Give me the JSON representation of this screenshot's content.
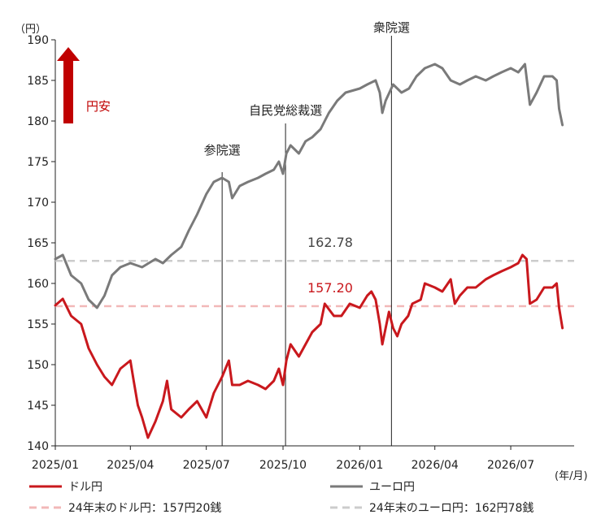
{
  "chart_data": {
    "type": "line",
    "unit_label": "（円）",
    "x_unit_label": "(年/月)",
    "ylim": [
      140,
      190
    ],
    "yticks": [
      140,
      145,
      150,
      155,
      160,
      165,
      170,
      175,
      180,
      185,
      190
    ],
    "xlim": [
      "2025-01-01",
      "2026-09-15"
    ],
    "xticks": [
      {
        "date": "2025-01-01",
        "label": "2025/01"
      },
      {
        "date": "2025-04-01",
        "label": "2025/04"
      },
      {
        "date": "2025-07-01",
        "label": "2025/07"
      },
      {
        "date": "2025-10-01",
        "label": "2025/10"
      },
      {
        "date": "2026-01-01",
        "label": "2026/01"
      },
      {
        "date": "2026-04-01",
        "label": "2026/04"
      },
      {
        "date": "2026-07-01",
        "label": "2026/07"
      }
    ],
    "grid": false,
    "legend_position": "bottom",
    "arrow_label": "円安",
    "series": [
      {
        "name": "ドル円",
        "color": "#c9181d",
        "points": [
          [
            "2025-01-01",
            157.3
          ],
          [
            "2025-01-10",
            158.1
          ],
          [
            "2025-01-20",
            156.0
          ],
          [
            "2025-02-01",
            155.0
          ],
          [
            "2025-02-10",
            152.0
          ],
          [
            "2025-02-20",
            150.0
          ],
          [
            "2025-03-01",
            148.5
          ],
          [
            "2025-03-10",
            147.5
          ],
          [
            "2025-03-20",
            149.5
          ],
          [
            "2025-04-01",
            150.5
          ],
          [
            "2025-04-05",
            148.0
          ],
          [
            "2025-04-10",
            145.0
          ],
          [
            "2025-04-15",
            143.5
          ],
          [
            "2025-04-22",
            141.0
          ],
          [
            "2025-05-01",
            143.0
          ],
          [
            "2025-05-10",
            145.5
          ],
          [
            "2025-05-15",
            148.0
          ],
          [
            "2025-05-20",
            144.5
          ],
          [
            "2025-06-01",
            143.5
          ],
          [
            "2025-06-10",
            144.5
          ],
          [
            "2025-06-20",
            145.5
          ],
          [
            "2025-07-01",
            143.5
          ],
          [
            "2025-07-10",
            146.5
          ],
          [
            "2025-07-20",
            148.5
          ],
          [
            "2025-07-28",
            150.5
          ],
          [
            "2025-08-01",
            147.5
          ],
          [
            "2025-08-10",
            147.5
          ],
          [
            "2025-08-20",
            148.0
          ],
          [
            "2025-09-01",
            147.5
          ],
          [
            "2025-09-10",
            147.0
          ],
          [
            "2025-09-20",
            148.0
          ],
          [
            "2025-09-26",
            149.5
          ],
          [
            "2025-10-01",
            147.5
          ],
          [
            "2025-10-05",
            150.5
          ],
          [
            "2025-10-10",
            152.5
          ],
          [
            "2025-10-20",
            151.0
          ],
          [
            "2025-10-28",
            152.5
          ],
          [
            "2025-11-05",
            154.0
          ],
          [
            "2025-11-15",
            155.0
          ],
          [
            "2025-11-20",
            157.5
          ],
          [
            "2025-12-01",
            156.0
          ],
          [
            "2025-12-10",
            156.0
          ],
          [
            "2025-12-20",
            157.5
          ],
          [
            "2026-01-01",
            157.0
          ],
          [
            "2026-01-10",
            158.5
          ],
          [
            "2026-01-15",
            159.0
          ],
          [
            "2026-01-20",
            158.0
          ],
          [
            "2026-01-25",
            155.0
          ],
          [
            "2026-01-28",
            152.5
          ],
          [
            "2026-02-01",
            154.5
          ],
          [
            "2026-02-05",
            156.5
          ],
          [
            "2026-02-10",
            154.5
          ],
          [
            "2026-02-15",
            153.5
          ],
          [
            "2026-02-20",
            155.0
          ],
          [
            "2026-02-28",
            156.0
          ],
          [
            "2026-03-05",
            157.5
          ],
          [
            "2026-03-15",
            158.0
          ],
          [
            "2026-03-20",
            160.0
          ],
          [
            "2026-04-01",
            159.5
          ],
          [
            "2026-04-10",
            159.0
          ],
          [
            "2026-04-20",
            160.5
          ],
          [
            "2026-04-25",
            157.5
          ],
          [
            "2026-05-01",
            158.5
          ],
          [
            "2026-05-10",
            159.5
          ],
          [
            "2026-05-20",
            159.5
          ],
          [
            "2026-06-01",
            160.5
          ],
          [
            "2026-06-10",
            161.0
          ],
          [
            "2026-06-20",
            161.5
          ],
          [
            "2026-07-01",
            162.0
          ],
          [
            "2026-07-10",
            162.5
          ],
          [
            "2026-07-15",
            163.5
          ],
          [
            "2026-07-20",
            163.0
          ],
          [
            "2026-07-24",
            157.5
          ],
          [
            "2026-08-01",
            158.0
          ],
          [
            "2026-08-10",
            159.5
          ],
          [
            "2026-08-20",
            159.5
          ],
          [
            "2026-08-25",
            160.0
          ],
          [
            "2026-08-28",
            157.0
          ],
          [
            "2026-09-01",
            154.5
          ]
        ]
      },
      {
        "name": "ユーロ円",
        "color": "#7a7a7a",
        "points": [
          [
            "2025-01-01",
            163.0
          ],
          [
            "2025-01-10",
            163.5
          ],
          [
            "2025-01-20",
            161.0
          ],
          [
            "2025-02-01",
            160.0
          ],
          [
            "2025-02-10",
            158.0
          ],
          [
            "2025-02-20",
            157.0
          ],
          [
            "2025-03-01",
            158.5
          ],
          [
            "2025-03-10",
            161.0
          ],
          [
            "2025-03-20",
            162.0
          ],
          [
            "2025-04-01",
            162.5
          ],
          [
            "2025-04-15",
            162.0
          ],
          [
            "2025-05-01",
            163.0
          ],
          [
            "2025-05-10",
            162.5
          ],
          [
            "2025-05-20",
            163.5
          ],
          [
            "2025-06-01",
            164.5
          ],
          [
            "2025-06-10",
            166.5
          ],
          [
            "2025-06-20",
            168.5
          ],
          [
            "2025-07-01",
            171.0
          ],
          [
            "2025-07-10",
            172.5
          ],
          [
            "2025-07-20",
            173.0
          ],
          [
            "2025-07-28",
            172.5
          ],
          [
            "2025-08-01",
            170.5
          ],
          [
            "2025-08-10",
            172.0
          ],
          [
            "2025-08-20",
            172.5
          ],
          [
            "2025-09-01",
            173.0
          ],
          [
            "2025-09-10",
            173.5
          ],
          [
            "2025-09-20",
            174.0
          ],
          [
            "2025-09-26",
            175.0
          ],
          [
            "2025-10-01",
            173.5
          ],
          [
            "2025-10-05",
            176.0
          ],
          [
            "2025-10-10",
            177.0
          ],
          [
            "2025-10-20",
            176.0
          ],
          [
            "2025-10-28",
            177.5
          ],
          [
            "2025-11-05",
            178.0
          ],
          [
            "2025-11-15",
            179.0
          ],
          [
            "2025-11-25",
            181.0
          ],
          [
            "2025-12-05",
            182.5
          ],
          [
            "2025-12-15",
            183.5
          ],
          [
            "2026-01-01",
            184.0
          ],
          [
            "2026-01-10",
            184.5
          ],
          [
            "2026-01-20",
            185.0
          ],
          [
            "2026-01-25",
            183.5
          ],
          [
            "2026-01-28",
            181.0
          ],
          [
            "2026-02-01",
            182.5
          ],
          [
            "2026-02-10",
            184.5
          ],
          [
            "2026-02-20",
            183.5
          ],
          [
            "2026-03-01",
            184.0
          ],
          [
            "2026-03-10",
            185.5
          ],
          [
            "2026-03-20",
            186.5
          ],
          [
            "2026-04-01",
            187.0
          ],
          [
            "2026-04-10",
            186.5
          ],
          [
            "2026-04-20",
            185.0
          ],
          [
            "2026-05-01",
            184.5
          ],
          [
            "2026-05-10",
            185.0
          ],
          [
            "2026-05-20",
            185.5
          ],
          [
            "2026-06-01",
            185.0
          ],
          [
            "2026-06-10",
            185.5
          ],
          [
            "2026-06-20",
            186.0
          ],
          [
            "2026-07-01",
            186.5
          ],
          [
            "2026-07-10",
            186.0
          ],
          [
            "2026-07-18",
            187.0
          ],
          [
            "2026-07-24",
            182.0
          ],
          [
            "2026-08-01",
            183.5
          ],
          [
            "2026-08-10",
            185.5
          ],
          [
            "2026-08-20",
            185.5
          ],
          [
            "2026-08-25",
            185.0
          ],
          [
            "2026-08-28",
            181.5
          ],
          [
            "2026-09-01",
            179.5
          ]
        ]
      }
    ],
    "reference_lines": [
      {
        "name": "24年末のドル円：157円20銭",
        "value": 157.2,
        "label": "157.20",
        "color": "#f2b8b8",
        "label_color": "#c9181d"
      },
      {
        "name": "24年末のユーロ円：162円78銭",
        "value": 162.78,
        "label": "162.78",
        "color": "#cccccc",
        "label_color": "#444444"
      }
    ],
    "events": [
      {
        "label": "参院選",
        "date": "2025-07-20"
      },
      {
        "label": "自民党総裁選",
        "date": "2025-10-04"
      },
      {
        "label": "衆院選",
        "date": "2026-02-08"
      }
    ]
  }
}
